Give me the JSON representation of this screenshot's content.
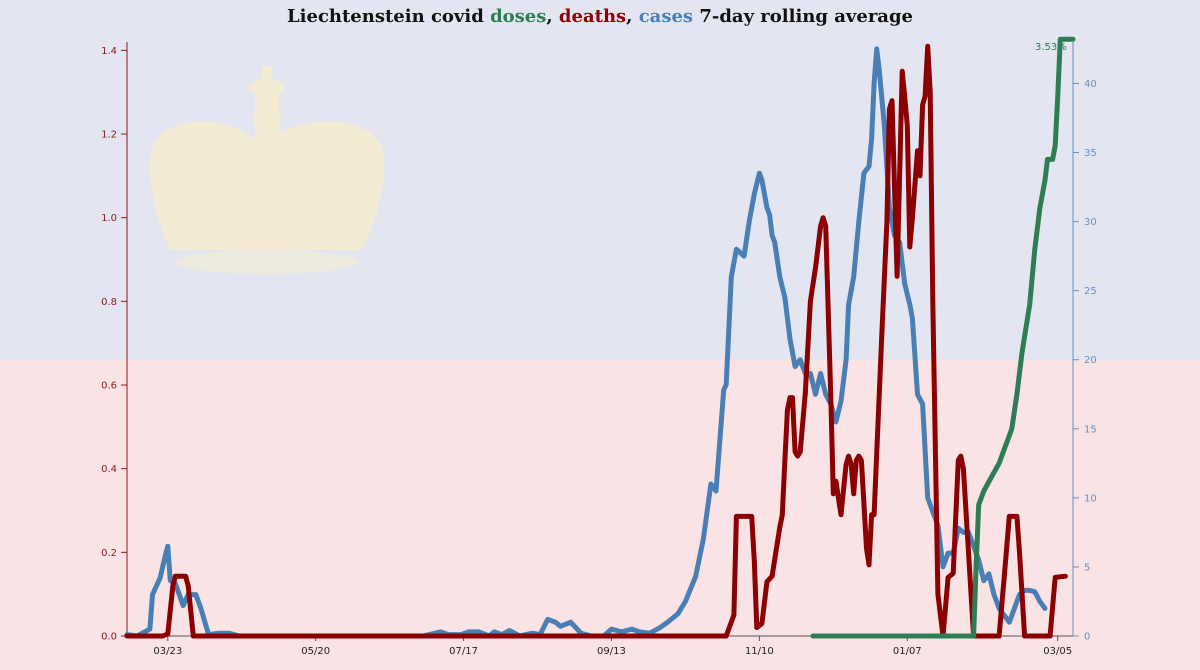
{
  "title": {
    "prefix": "Liechtenstein covid ",
    "doses": "doses",
    "sep1": ", ",
    "deaths": "deaths",
    "sep2": ", ",
    "cases": "cases",
    "suffix": " 7-day rolling average"
  },
  "colors": {
    "background_top": "#e3e6f0",
    "background_bottom": "#fae3e5",
    "doses": "#2e7d55",
    "deaths": "#8b0000",
    "cases": "#4a7fb5",
    "left_axis": "#8b1a1a",
    "right_axis": "#6a8fbf",
    "crown": "#f6edcf"
  },
  "chart_data": {
    "type": "line",
    "title": "Liechtenstein covid doses, deaths, cases 7-day rolling average",
    "x_tick_labels": [
      "03/23",
      "05/20",
      "07/17",
      "09/13",
      "11/10",
      "01/07",
      "03/05"
    ],
    "x_tick_days": [
      0,
      58,
      116,
      174,
      232,
      290,
      349
    ],
    "x_range_days": [
      -16,
      355
    ],
    "left_axis": {
      "series": "deaths",
      "range": [
        0,
        1.42
      ],
      "ticks": [
        0.0,
        0.2,
        0.4,
        0.6,
        0.8,
        1.0,
        1.2,
        1.4
      ]
    },
    "right_axis": {
      "series": "cases",
      "range": [
        0,
        43
      ],
      "ticks": [
        0,
        5,
        10,
        15,
        20,
        25,
        30,
        35,
        40
      ]
    },
    "annotation": {
      "text": "3.53%",
      "series": "doses"
    },
    "series": [
      {
        "name": "cases",
        "axis": "right",
        "points": [
          [
            -16,
            0.1
          ],
          [
            -12,
            0
          ],
          [
            -7,
            0.5
          ],
          [
            -6,
            3
          ],
          [
            -3,
            4.2
          ],
          [
            -1,
            5.8
          ],
          [
            0,
            6.5
          ],
          [
            1,
            4
          ],
          [
            3,
            3.8
          ],
          [
            6,
            2.2
          ],
          [
            8,
            3
          ],
          [
            11,
            3
          ],
          [
            13,
            2
          ],
          [
            16,
            0.1
          ],
          [
            20,
            0.2
          ],
          [
            24,
            0.2
          ],
          [
            28,
            0
          ],
          [
            100,
            0
          ],
          [
            107,
            0.3
          ],
          [
            110,
            0.1
          ],
          [
            115,
            0.1
          ],
          [
            118,
            0.3
          ],
          [
            122,
            0.3
          ],
          [
            126,
            0
          ],
          [
            128,
            0.3
          ],
          [
            131,
            0.1
          ],
          [
            134,
            0.4
          ],
          [
            138,
            0
          ],
          [
            143,
            0.2
          ],
          [
            146,
            0.1
          ],
          [
            149,
            1.2
          ],
          [
            152,
            1
          ],
          [
            154,
            0.7
          ],
          [
            158,
            1
          ],
          [
            162,
            0.2
          ],
          [
            166,
            0
          ],
          [
            171,
            0
          ],
          [
            174,
            0.5
          ],
          [
            178,
            0.3
          ],
          [
            182,
            0.5
          ],
          [
            185,
            0.3
          ],
          [
            189,
            0.2
          ],
          [
            193,
            0.6
          ],
          [
            196,
            1
          ],
          [
            200,
            1.6
          ],
          [
            203,
            2.5
          ],
          [
            207,
            4.3
          ],
          [
            210,
            7
          ],
          [
            213,
            11
          ],
          [
            215,
            10.5
          ],
          [
            218,
            17.8
          ],
          [
            219,
            18.2
          ],
          [
            221,
            26
          ],
          [
            223,
            28
          ],
          [
            226,
            27.5
          ],
          [
            228,
            30
          ],
          [
            230,
            32
          ],
          [
            232,
            33.5
          ],
          [
            233,
            33
          ],
          [
            235,
            31
          ],
          [
            236,
            30.5
          ],
          [
            237,
            29
          ],
          [
            238,
            28.5
          ],
          [
            240,
            26
          ],
          [
            242,
            24.5
          ],
          [
            244,
            21.5
          ],
          [
            246,
            19.5
          ],
          [
            248,
            20
          ],
          [
            250,
            19
          ],
          [
            252,
            19
          ],
          [
            254,
            17.5
          ],
          [
            256,
            19
          ],
          [
            258,
            17.5
          ],
          [
            260,
            16.8
          ],
          [
            262,
            15.5
          ],
          [
            264,
            17
          ],
          [
            266,
            20
          ],
          [
            267,
            24
          ],
          [
            269,
            26
          ],
          [
            271,
            30
          ],
          [
            273,
            33.5
          ],
          [
            275,
            34
          ],
          [
            276,
            36
          ],
          [
            277,
            40
          ],
          [
            278,
            42.5
          ],
          [
            279,
            41
          ],
          [
            281,
            37
          ],
          [
            283,
            31
          ],
          [
            285,
            29
          ],
          [
            287,
            28.5
          ],
          [
            289,
            25.5
          ],
          [
            291,
            24
          ],
          [
            292,
            23
          ],
          [
            294,
            17.5
          ],
          [
            296,
            16.8
          ],
          [
            298,
            10
          ],
          [
            300,
            9
          ],
          [
            302,
            8
          ],
          [
            304,
            5
          ],
          [
            306,
            6
          ],
          [
            308,
            6
          ],
          [
            310,
            7.8
          ],
          [
            312,
            7.5
          ],
          [
            314,
            7.5
          ],
          [
            316,
            6.5
          ],
          [
            318,
            5.5
          ],
          [
            320,
            4
          ],
          [
            322,
            4.5
          ],
          [
            324,
            3
          ],
          [
            326,
            2
          ],
          [
            328,
            1.5
          ],
          [
            330,
            1
          ],
          [
            332,
            2
          ],
          [
            334,
            3
          ],
          [
            336,
            3.3
          ],
          [
            338,
            3.3
          ],
          [
            340,
            3.2
          ],
          [
            342,
            2.5
          ],
          [
            344,
            2
          ]
        ]
      },
      {
        "name": "deaths",
        "axis": "left",
        "points": [
          [
            -16,
            0
          ],
          [
            -2,
            0
          ],
          [
            0,
            0.005
          ],
          [
            2,
            0.12
          ],
          [
            3,
            0.143
          ],
          [
            7,
            0.143
          ],
          [
            8,
            0.12
          ],
          [
            10,
            0
          ],
          [
            219,
            0
          ],
          [
            222,
            0.05
          ],
          [
            223,
            0.286
          ],
          [
            229,
            0.286
          ],
          [
            230,
            0.18
          ],
          [
            231,
            0.02
          ],
          [
            233,
            0.03
          ],
          [
            235,
            0.13
          ],
          [
            237,
            0.143
          ],
          [
            240,
            0.26
          ],
          [
            241,
            0.29
          ],
          [
            242,
            0.42
          ],
          [
            243,
            0.54
          ],
          [
            244,
            0.57
          ],
          [
            245,
            0.57
          ],
          [
            246,
            0.44
          ],
          [
            247,
            0.43
          ],
          [
            248,
            0.44
          ],
          [
            250,
            0.58
          ],
          [
            252,
            0.8
          ],
          [
            254,
            0.88
          ],
          [
            256,
            0.98
          ],
          [
            257,
            1.0
          ],
          [
            258,
            0.98
          ],
          [
            260,
            0.57
          ],
          [
            261,
            0.34
          ],
          [
            262,
            0.37
          ],
          [
            263,
            0.33
          ],
          [
            264,
            0.29
          ],
          [
            266,
            0.41
          ],
          [
            267,
            0.43
          ],
          [
            268,
            0.41
          ],
          [
            269,
            0.34
          ],
          [
            270,
            0.42
          ],
          [
            271,
            0.43
          ],
          [
            272,
            0.42
          ],
          [
            274,
            0.21
          ],
          [
            275,
            0.17
          ],
          [
            276,
            0.29
          ],
          [
            277,
            0.29
          ],
          [
            280,
            0.72
          ],
          [
            282,
            0.99
          ],
          [
            283,
            1.26
          ],
          [
            284,
            1.28
          ],
          [
            286,
            0.86
          ],
          [
            288,
            1.35
          ],
          [
            289,
            1.29
          ],
          [
            290,
            1.22
          ],
          [
            291,
            0.93
          ],
          [
            292,
            1.0
          ],
          [
            294,
            1.16
          ],
          [
            295,
            1.1
          ],
          [
            296,
            1.27
          ],
          [
            297,
            1.29
          ],
          [
            298,
            1.41
          ],
          [
            299,
            1.3
          ],
          [
            300,
            0.8
          ],
          [
            302,
            0.1
          ],
          [
            304,
            0
          ],
          [
            306,
            0.14
          ],
          [
            308,
            0.15
          ],
          [
            310,
            0.42
          ],
          [
            311,
            0.43
          ],
          [
            312,
            0.4
          ],
          [
            314,
            0.2
          ],
          [
            316,
            0
          ],
          [
            326,
            0
          ],
          [
            328,
            0.14
          ],
          [
            330,
            0.286
          ],
          [
            333,
            0.286
          ],
          [
            334,
            0.2
          ],
          [
            336,
            0
          ],
          [
            346,
            0
          ],
          [
            348,
            0.14
          ],
          [
            352,
            0.143
          ]
        ]
      },
      {
        "name": "doses",
        "axis": "right",
        "points": [
          [
            253,
            0
          ],
          [
            316,
            0
          ],
          [
            317,
            5
          ],
          [
            318,
            9.5
          ],
          [
            320,
            10.5
          ],
          [
            323,
            11.5
          ],
          [
            326,
            12.5
          ],
          [
            329,
            14
          ],
          [
            331,
            15
          ],
          [
            333,
            17.5
          ],
          [
            335,
            20.5
          ],
          [
            338,
            24
          ],
          [
            340,
            28
          ],
          [
            342,
            31
          ],
          [
            344,
            33
          ],
          [
            345,
            34.5
          ],
          [
            347,
            34.5
          ],
          [
            348,
            35.5
          ],
          [
            349,
            39
          ],
          [
            350,
            43.2
          ],
          [
            355,
            43.2
          ]
        ]
      }
    ]
  }
}
